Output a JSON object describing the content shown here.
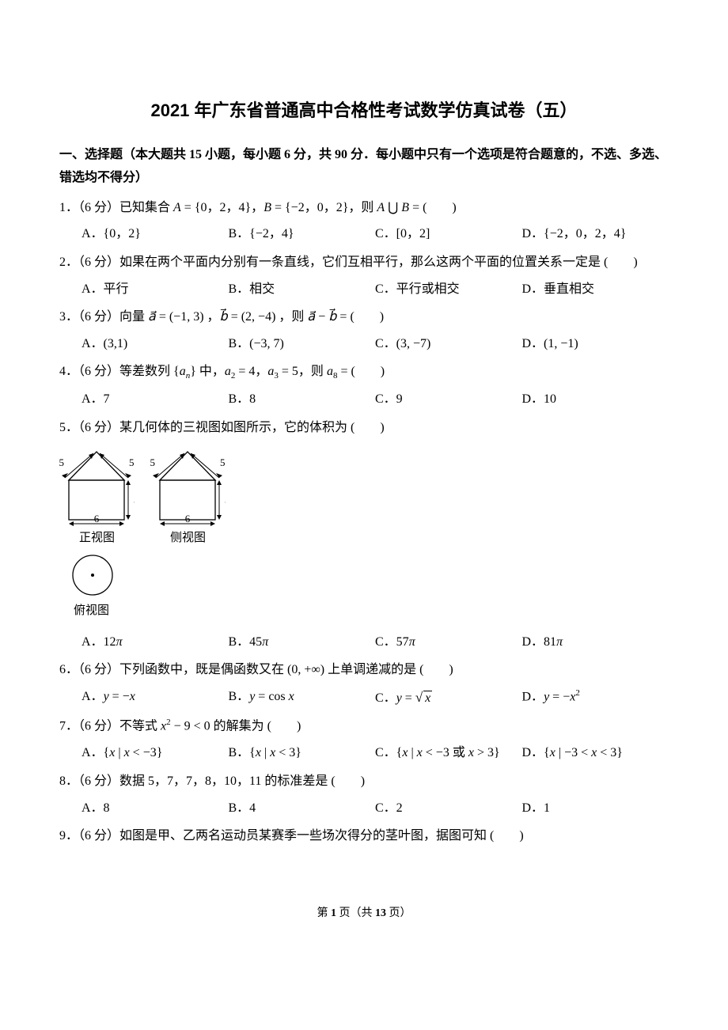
{
  "title": "2021 年广东省普通高中合格性考试数学仿真试卷（五）",
  "section_header": "一、选择题（本大题共 15 小题，每小题 6 分，共 90 分．每小题中只有一个选项是符合题意的，不选、多选、错选均不得分）",
  "questions": [
    {
      "num": "1",
      "points": "（6 分）",
      "text_html": "已知集合 <i>A</i> = {0，2，4}，<i>B</i> = {−2，0，2}，则 <i>A</i> ⋃ <i>B</i> = (　　)",
      "options": [
        "{0，2}",
        "{−2，4}",
        "[0，2]",
        "{−2，0，2，4}"
      ]
    },
    {
      "num": "2",
      "points": "（6 分）",
      "text_html": "如果在两个平面内分别有一条直线，它们互相平行，那么这两个平面的位置关系一定是 (　　)",
      "options": [
        "平行",
        "相交",
        "平行或相交",
        "垂直相交"
      ]
    },
    {
      "num": "3",
      "points": "（6 分）",
      "text_html": "向量 <i>a⃗</i> = (−1, 3) ，<i>b⃗</i> = (2, −4) ，则 <i>a⃗</i> − <i>b⃗</i> = (　　)",
      "options": [
        "(3,1)",
        "(−3, 7)",
        "(3, −7)",
        "(1, −1)"
      ]
    },
    {
      "num": "4",
      "points": "（6 分）",
      "text_html": "等差数列 {<i>a<sub>n</sub></i>} 中，<i>a</i><sub>2</sub> = 4，<i>a</i><sub>3</sub> = 5，则 <i>a</i><sub>8</sub> = (　　)",
      "options": [
        "7",
        "8",
        "9",
        "10"
      ]
    },
    {
      "num": "5",
      "points": "（6 分）",
      "text_html": "某几何体的三视图如图所示，它的体积为 (　　)",
      "has_diagram": true,
      "options": [
        "12<i>π</i>",
        "45<i>π</i>",
        "57<i>π</i>",
        "81<i>π</i>"
      ]
    },
    {
      "num": "6",
      "points": "（6 分）",
      "text_html": "下列函数中，既是偶函数又在 (0, +∞) 上单调递减的是 (　　)",
      "options": [
        "<i>y</i> = −<i>x</i>",
        "<i>y</i> = cos <i>x</i>",
        "<i>y</i> = <span class='sqrt-sign'>√</span><span class='sqrt'><i>x</i></span>",
        "<i>y</i> = −<i>x</i><sup>2</sup>"
      ]
    },
    {
      "num": "7",
      "points": "（6 分）",
      "text_html": "不等式 <i>x</i><sup>2</sup> − 9 &lt; 0 的解集为 (　　)",
      "options": [
        "{<i>x</i> | <i>x</i> &lt; −3}",
        "{<i>x</i> | <i>x</i> &lt; 3}",
        "{<i>x</i> | <i>x</i> &lt; −3 或 <i>x</i> &gt; 3}",
        "{<i>x</i> | −3 &lt; <i>x</i> &lt; 3}"
      ]
    },
    {
      "num": "8",
      "points": "（6 分）",
      "text_html": "数据 5，7，7，8，10，11 的标准差是 (　　)",
      "options": [
        "8",
        "4",
        "2",
        "1"
      ]
    },
    {
      "num": "9",
      "points": "（6 分）",
      "text_html": "如图是甲、乙两名运动员某赛季一些场次得分的茎叶图，据图可知 (　　)",
      "options": null
    }
  ],
  "option_labels": [
    "A．",
    "B．",
    "C．",
    "D．"
  ],
  "diagram": {
    "front_label": "正视图",
    "side_label": "侧视图",
    "top_label": "俯视图",
    "dim_5": "5",
    "dim_6": "6",
    "stroke": "#000000",
    "fill": "none",
    "rect_w": 70,
    "rect_h": 50,
    "tri_h": 36,
    "circle_r": 25
  },
  "footer": {
    "prefix": "第 ",
    "page": "1",
    "middle": " 页（共 ",
    "total": "13",
    "suffix": " 页）"
  }
}
